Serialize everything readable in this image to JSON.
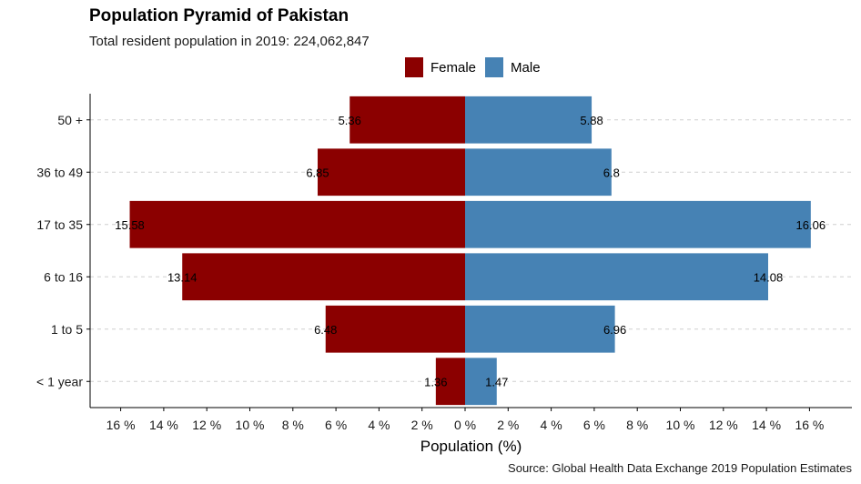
{
  "chart_data": {
    "type": "bar",
    "orientation": "horizontal",
    "title": "Population Pyramid of Pakistan",
    "subtitle": "Total resident population in 2019: 224,062,847",
    "caption": "Source: Global Health Data Exchange 2019 Population Estimates",
    "xlabel": "Population (%)",
    "ylabel": "",
    "categories": [
      "< 1 year",
      "1 to 5",
      "6 to 16",
      "17 to 35",
      "36 to 49",
      "50 +"
    ],
    "series": [
      {
        "name": "Female",
        "color": "#8b0000",
        "values": [
          1.36,
          6.48,
          13.14,
          15.58,
          6.85,
          5.36
        ]
      },
      {
        "name": "Male",
        "color": "#4682b4",
        "values": [
          1.47,
          6.96,
          14.08,
          16.06,
          6.8,
          5.88
        ]
      }
    ],
    "data_labels": {
      "Female": [
        "1.36",
        "6.48",
        "13.14",
        "15.58",
        "6.85",
        "5.36"
      ],
      "Male": [
        "1.47",
        "6.96",
        "14.08",
        "16.06",
        "6.8",
        "5.88"
      ]
    },
    "xlim": [
      -16,
      16
    ],
    "xticks": [
      -16,
      -14,
      -12,
      -10,
      -8,
      -6,
      -4,
      -2,
      0,
      2,
      4,
      6,
      8,
      10,
      12,
      14,
      16
    ],
    "xtick_labels": [
      "16 %",
      "14 %",
      "12 %",
      "10 %",
      "8 %",
      "6 %",
      "4 %",
      "2 %",
      "0 %",
      "2 %",
      "4 %",
      "6 %",
      "8 %",
      "10 %",
      "12 %",
      "14 %",
      "16 %"
    ],
    "grid": "horizontal dashed",
    "legend_position": "top"
  }
}
